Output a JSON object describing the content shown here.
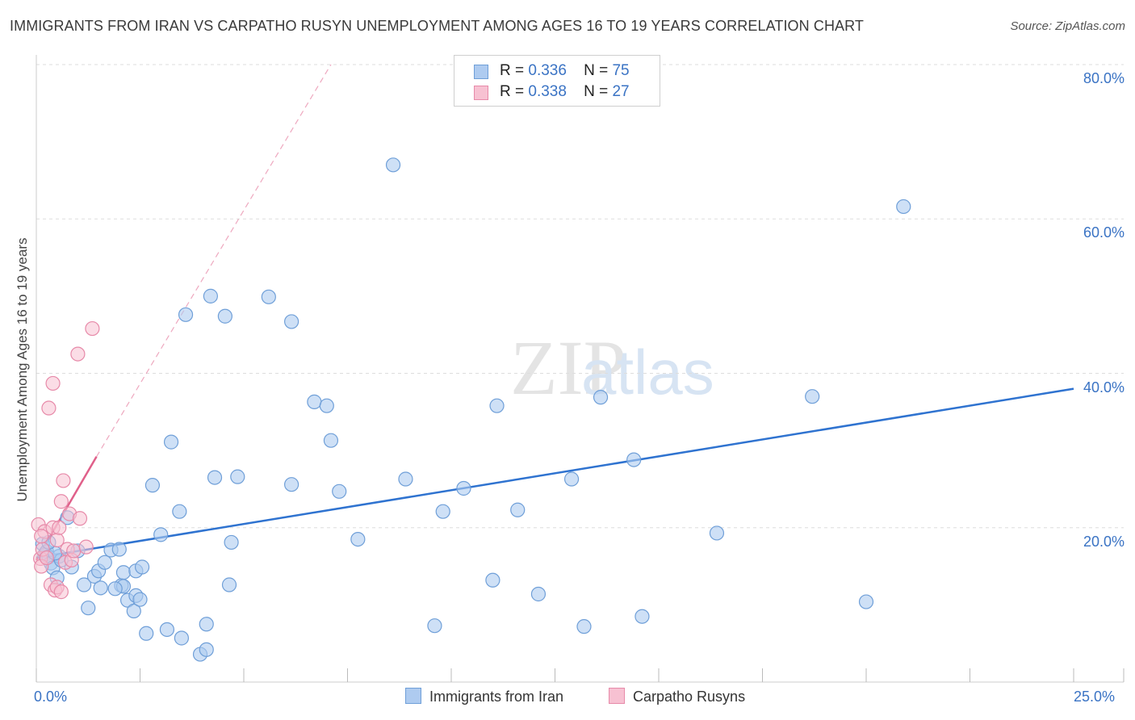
{
  "title": "IMMIGRANTS FROM IRAN VS CARPATHO RUSYN UNEMPLOYMENT AMONG AGES 16 TO 19 YEARS CORRELATION CHART",
  "source": "Source: ZipAtlas.com",
  "watermark": {
    "zip": "ZIP",
    "atlas": "atlas"
  },
  "legend": {
    "series": [
      {
        "r_label": "R =",
        "r_value": "0.336",
        "n_label": "N =",
        "n_value": "75"
      },
      {
        "r_label": "R =",
        "r_value": "0.338",
        "n_label": "N =",
        "n_value": "27"
      }
    ]
  },
  "bottom_legend": [
    "Immigrants from Iran",
    "Carpatho Rusyns"
  ],
  "colors": {
    "iran_fill": "#aecbf0",
    "iran_stroke": "#6f9fd8",
    "iran_line": "#2f73d0",
    "rusyn_fill": "#f7c1d2",
    "rusyn_stroke": "#e78aa9",
    "rusyn_line": "#e0608a",
    "axis_label": "#3a73c4",
    "grid": "#dddddd"
  },
  "chart_data": {
    "type": "scatter",
    "title": "IMMIGRANTS FROM IRAN VS CARPATHO RUSYN UNEMPLOYMENT AMONG AGES 16 TO 19 YEARS CORRELATION CHART",
    "xlabel": "",
    "ylabel": "Unemployment Among Ages 16 to 19 years",
    "xlim": [
      0,
      25
    ],
    "ylim": [
      0,
      80
    ],
    "x_tick_labels": [
      "0.0%",
      "25.0%"
    ],
    "y_ticks": [
      20,
      40,
      60,
      80
    ],
    "y_tick_labels": [
      "20.0%",
      "40.0%",
      "60.0%",
      "80.0%"
    ],
    "grid": true,
    "series": [
      {
        "name": "Immigrants from Iran",
        "points": [
          [
            0.15,
            17.9
          ],
          [
            0.2,
            16.5
          ],
          [
            0.25,
            16.9
          ],
          [
            0.3,
            16.2
          ],
          [
            0.35,
            15.4
          ],
          [
            0.4,
            14.8
          ],
          [
            0.5,
            13.5
          ],
          [
            0.55,
            16.3
          ],
          [
            0.75,
            21.3
          ],
          [
            0.85,
            14.9
          ],
          [
            1.0,
            17.0
          ],
          [
            1.15,
            12.6
          ],
          [
            1.25,
            9.6
          ],
          [
            1.4,
            13.7
          ],
          [
            1.5,
            14.4
          ],
          [
            1.55,
            12.2
          ],
          [
            1.65,
            15.5
          ],
          [
            1.8,
            17.1
          ],
          [
            2.05,
            12.5
          ],
          [
            2.1,
            14.2
          ],
          [
            2.1,
            12.4
          ],
          [
            2.0,
            17.2
          ],
          [
            2.2,
            10.6
          ],
          [
            2.4,
            11.2
          ],
          [
            2.4,
            14.4
          ],
          [
            2.35,
            9.2
          ],
          [
            2.5,
            10.7
          ],
          [
            2.55,
            14.9
          ],
          [
            2.65,
            6.3
          ],
          [
            2.8,
            25.5
          ],
          [
            3.0,
            19.1
          ],
          [
            3.15,
            6.8
          ],
          [
            3.25,
            31.1
          ],
          [
            3.45,
            22.1
          ],
          [
            3.6,
            47.6
          ],
          [
            3.95,
            3.6
          ],
          [
            4.1,
            7.5
          ],
          [
            4.1,
            4.2
          ],
          [
            4.2,
            50.0
          ],
          [
            4.3,
            26.5
          ],
          [
            4.55,
            47.4
          ],
          [
            4.65,
            12.6
          ],
          [
            4.85,
            26.6
          ],
          [
            4.7,
            18.1
          ],
          [
            5.6,
            49.9
          ],
          [
            6.15,
            46.7
          ],
          [
            6.15,
            25.6
          ],
          [
            6.7,
            36.3
          ],
          [
            7.0,
            35.8
          ],
          [
            7.1,
            31.3
          ],
          [
            7.3,
            24.7
          ],
          [
            7.75,
            18.5
          ],
          [
            8.6,
            67.0
          ],
          [
            8.9,
            26.3
          ],
          [
            9.6,
            7.3
          ],
          [
            9.8,
            22.1
          ],
          [
            10.3,
            25.1
          ],
          [
            11.0,
            13.2
          ],
          [
            11.1,
            35.8
          ],
          [
            11.6,
            22.3
          ],
          [
            12.1,
            11.4
          ],
          [
            12.9,
            26.3
          ],
          [
            13.2,
            7.2
          ],
          [
            13.6,
            36.9
          ],
          [
            14.4,
            28.8
          ],
          [
            14.6,
            8.5
          ],
          [
            16.4,
            19.3
          ],
          [
            18.7,
            37.0
          ],
          [
            20.0,
            10.4
          ],
          [
            20.9,
            61.6
          ],
          [
            0.6,
            15.8
          ],
          [
            1.9,
            12.1
          ],
          [
            0.45,
            16.7
          ],
          [
            3.5,
            5.7
          ],
          [
            0.3,
            18.1
          ]
        ],
        "trend": {
          "x": [
            0,
            25
          ],
          "y": [
            16.1,
            38.0
          ]
        }
      },
      {
        "name": "Carpatho Rusyns",
        "points": [
          [
            0.05,
            20.4
          ],
          [
            0.1,
            16.0
          ],
          [
            0.12,
            15.0
          ],
          [
            0.15,
            17.2
          ],
          [
            0.2,
            19.5
          ],
          [
            0.25,
            16.1
          ],
          [
            0.3,
            35.5
          ],
          [
            0.35,
            12.6
          ],
          [
            0.4,
            20.0
          ],
          [
            0.4,
            38.7
          ],
          [
            0.45,
            11.9
          ],
          [
            0.5,
            12.3
          ],
          [
            0.5,
            18.4
          ],
          [
            0.55,
            20.0
          ],
          [
            0.6,
            23.4
          ],
          [
            0.65,
            26.1
          ],
          [
            0.6,
            11.7
          ],
          [
            0.7,
            15.5
          ],
          [
            0.75,
            17.2
          ],
          [
            0.8,
            21.8
          ],
          [
            0.85,
            15.8
          ],
          [
            0.9,
            17.0
          ],
          [
            1.0,
            42.5
          ],
          [
            1.05,
            21.2
          ],
          [
            1.2,
            17.5
          ],
          [
            1.35,
            45.8
          ],
          [
            0.12,
            18.9
          ]
        ],
        "trend": {
          "x": [
            0,
            1.45
          ],
          "y": [
            15.8,
            29.2
          ]
        },
        "trend_extension": {
          "x": [
            1.45,
            7.1
          ],
          "y": [
            29.2,
            80.0
          ]
        }
      }
    ]
  }
}
